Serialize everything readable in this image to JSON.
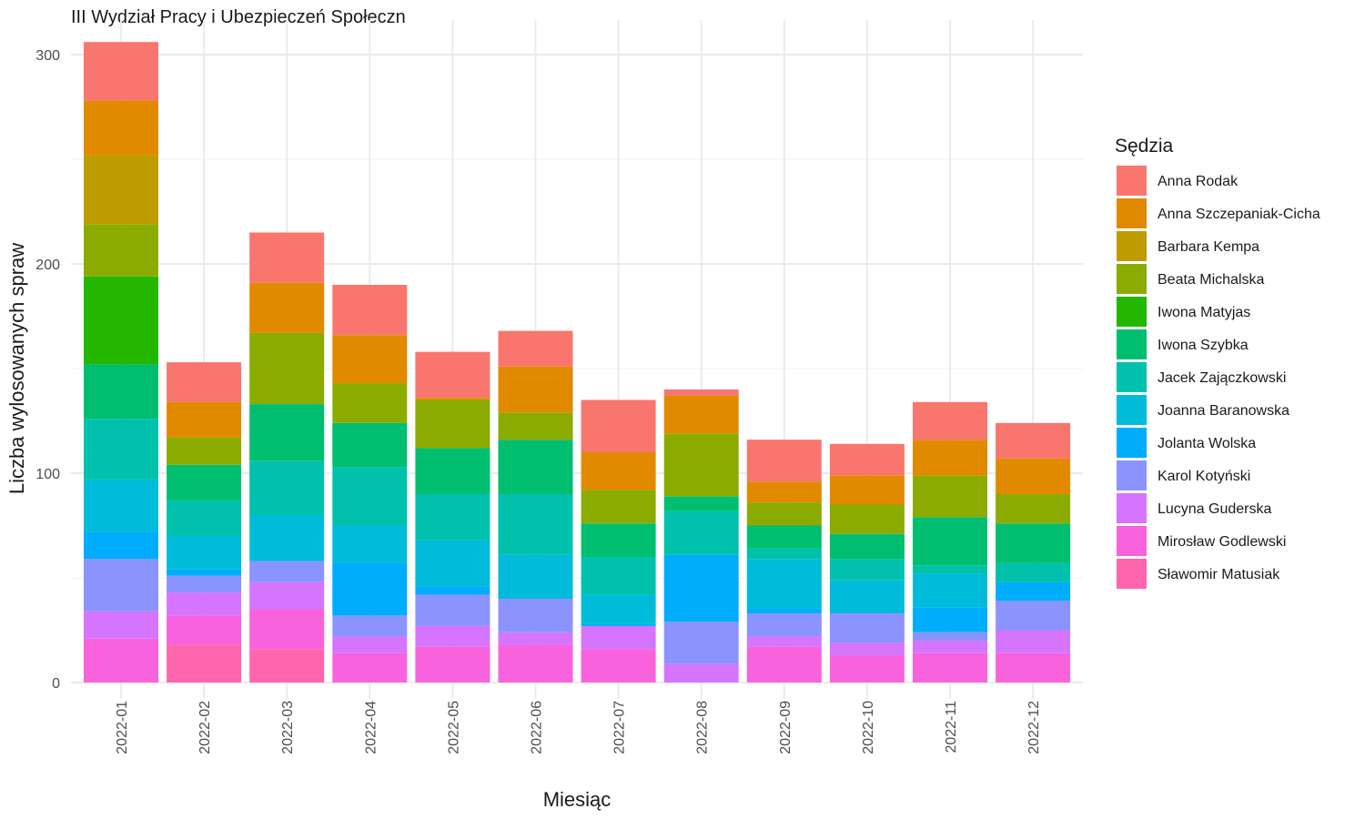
{
  "chart_data": {
    "type": "bar",
    "stacked": true,
    "title": "III Wydział Pracy i Ubezpieczeń Społeczn",
    "xlabel": "Miesiąc",
    "ylabel": "Liczba wylosowanych spraw",
    "ylim": [
      0,
      310
    ],
    "yticks": [
      0,
      100,
      200,
      300
    ],
    "grid": true,
    "legend_title": "Sędzia",
    "legend_position": "right",
    "categories": [
      "2022-01",
      "2022-02",
      "2022-03",
      "2022-04",
      "2022-05",
      "2022-06",
      "2022-07",
      "2022-08",
      "2022-09",
      "2022-10",
      "2022-11",
      "2022-12"
    ],
    "series": [
      {
        "name": "Anna Rodak",
        "color": "#F8766D",
        "values": [
          28,
          19,
          24,
          24,
          22,
          17,
          25,
          3,
          20,
          15,
          18,
          17
        ]
      },
      {
        "name": "Anna Szczepaniak-Cicha",
        "color": "#E18A00",
        "values": [
          26,
          17,
          24,
          23,
          1,
          22,
          18,
          18,
          10,
          14,
          17,
          17
        ]
      },
      {
        "name": "Barbara Kempa",
        "color": "#BE9C00",
        "values": [
          33,
          0,
          0,
          0,
          0,
          0,
          0,
          0,
          0,
          0,
          0,
          0
        ]
      },
      {
        "name": "Beata Michalska",
        "color": "#8CAB00",
        "values": [
          25,
          13,
          34,
          19,
          23,
          13,
          16,
          30,
          11,
          14,
          20,
          14
        ]
      },
      {
        "name": "Iwona Matyjas",
        "color": "#24B700",
        "values": [
          42,
          0,
          0,
          0,
          0,
          0,
          0,
          0,
          0,
          0,
          0,
          0
        ]
      },
      {
        "name": "Iwona Szybka",
        "color": "#00BE70",
        "values": [
          26,
          17,
          27,
          21,
          22,
          26,
          16,
          7,
          11,
          12,
          23,
          19
        ]
      },
      {
        "name": "Jacek Zajączkowski",
        "color": "#00C1AB",
        "values": [
          29,
          17,
          26,
          28,
          22,
          29,
          18,
          21,
          5,
          10,
          4,
          9
        ]
      },
      {
        "name": "Joanna Baranowska",
        "color": "#00BBDA",
        "values": [
          25,
          16,
          22,
          18,
          22,
          21,
          14,
          0,
          24,
          16,
          16,
          0
        ]
      },
      {
        "name": "Jolanta Wolska",
        "color": "#00ACFC",
        "values": [
          13,
          3,
          0,
          25,
          4,
          0,
          1,
          32,
          2,
          0,
          12,
          9
        ]
      },
      {
        "name": "Karol Kotyński",
        "color": "#8B93FF",
        "values": [
          25,
          8,
          10,
          10,
          15,
          16,
          0,
          20,
          11,
          14,
          4,
          14
        ]
      },
      {
        "name": "Lucyna Guderska",
        "color": "#D575FE",
        "values": [
          13,
          11,
          13,
          8,
          10,
          6,
          11,
          9,
          5,
          6,
          6,
          11
        ]
      },
      {
        "name": "Mirosław Godlewski",
        "color": "#F962DD",
        "values": [
          21,
          14,
          19,
          14,
          17,
          18,
          16,
          0,
          17,
          13,
          14,
          14
        ]
      },
      {
        "name": "Sławomir Matusiak",
        "color": "#FF65AC",
        "values": [
          0,
          18,
          16,
          0,
          0,
          0,
          0,
          0,
          0,
          0,
          0,
          0
        ]
      }
    ]
  }
}
